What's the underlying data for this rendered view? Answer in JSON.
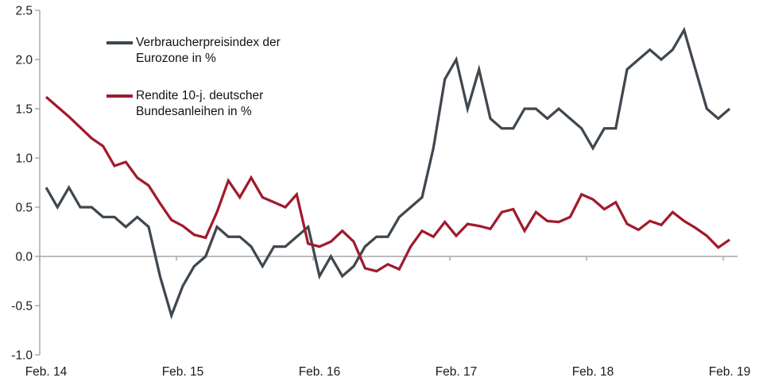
{
  "figure": {
    "background": "#ffffff",
    "axis": {
      "line_color": "#a6a6a6",
      "text_color": "#1a1a1a"
    }
  },
  "chart_data": {
    "type": "line",
    "title": "",
    "xlabel": "",
    "ylabel": "",
    "x_unit": "month",
    "x_start": "Feb 2014",
    "x_end": "Feb 2019",
    "n_points": 61,
    "x_tick_labels": [
      "Feb. 14",
      "Feb. 15",
      "Feb. 16",
      "Feb. 17",
      "Feb. 18",
      "Feb. 19"
    ],
    "y_tick_values": [
      2.5,
      2.0,
      1.5,
      1.0,
      0.5,
      0.0,
      -0.5,
      -1.0
    ],
    "y_tick_labels": [
      "2.5",
      "2.0",
      "1.5",
      "1.0",
      "0.5",
      "0.0",
      "-0.5",
      "-1.0"
    ],
    "ylim": [
      -1.0,
      2.5
    ],
    "grid": "zero-line-only",
    "legend_position": "top-left-inside",
    "series": [
      {
        "name": "Verbraucherpreisindex der Eurozone in %",
        "label": "Verbraucherpreisindex der\nEurozone in %",
        "color": "#3f474f",
        "values": [
          0.7,
          0.5,
          0.7,
          0.5,
          0.5,
          0.4,
          0.4,
          0.3,
          0.4,
          0.3,
          -0.2,
          -0.6,
          -0.3,
          -0.1,
          0.0,
          0.3,
          0.2,
          0.2,
          0.1,
          -0.1,
          0.1,
          0.1,
          0.2,
          0.3,
          -0.2,
          0.0,
          -0.2,
          -0.1,
          0.1,
          0.2,
          0.2,
          0.4,
          0.5,
          0.6,
          1.1,
          1.8,
          2.0,
          1.5,
          1.9,
          1.4,
          1.3,
          1.3,
          1.5,
          1.5,
          1.4,
          1.5,
          1.4,
          1.3,
          1.1,
          1.3,
          1.3,
          1.9,
          2.0,
          2.1,
          2.0,
          2.1,
          2.3,
          1.9,
          1.5,
          1.4,
          1.5
        ]
      },
      {
        "name": "Rendite 10-j. deutscher Bundesanleihen in %",
        "label": "Rendite 10-j. deutscher\nBundesanleihen in %",
        "color": "#a01b2c",
        "values": [
          1.62,
          1.52,
          1.42,
          1.31,
          1.2,
          1.12,
          0.92,
          0.96,
          0.8,
          0.72,
          0.54,
          0.37,
          0.31,
          0.22,
          0.19,
          0.45,
          0.77,
          0.6,
          0.8,
          0.6,
          0.55,
          0.5,
          0.63,
          0.13,
          0.1,
          0.15,
          0.26,
          0.15,
          -0.12,
          -0.15,
          -0.08,
          -0.13,
          0.1,
          0.26,
          0.2,
          0.35,
          0.21,
          0.33,
          0.31,
          0.28,
          0.45,
          0.48,
          0.26,
          0.45,
          0.36,
          0.35,
          0.4,
          0.63,
          0.58,
          0.48,
          0.55,
          0.33,
          0.27,
          0.36,
          0.32,
          0.45,
          0.36,
          0.29,
          0.21,
          0.09,
          0.17
        ]
      }
    ]
  }
}
